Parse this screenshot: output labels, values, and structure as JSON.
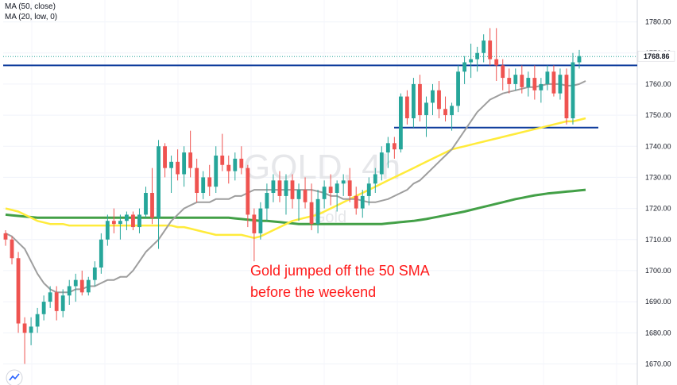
{
  "legend": {
    "line1": "MA (50, close)",
    "line2": "MA (20, low, 0)"
  },
  "watermark": {
    "symbol": "GOLD, 4h",
    "name": "Gold"
  },
  "annotation": {
    "line1": "Gold jumped off the 50 SMA",
    "line2": "before the weekend"
  },
  "price_tag": "1768.86",
  "colors": {
    "up": "#26a69a",
    "down": "#ef5350",
    "ma50": "#ffeb3b",
    "ma20": "#9e9e9e",
    "ma100": "#43a047",
    "level_line": "#0d3b9c",
    "annotation": "#ff1a1a"
  },
  "chart_data": {
    "type": "candlestick",
    "ylim": [
      1665,
      1785
    ],
    "yticks": [
      "1670.00",
      "1680.00",
      "1690.00",
      "1700.00",
      "1710.00",
      "1720.00",
      "1730.00",
      "1740.00",
      "1750.00",
      "1760.00",
      "1770.00",
      "1780.00"
    ],
    "candles": [
      [
        1712,
        1713,
        1708,
        1710
      ],
      [
        1710,
        1711,
        1702,
        1704
      ],
      [
        1704,
        1706,
        1680,
        1683
      ],
      [
        1683,
        1685,
        1670,
        1680
      ],
      [
        1680,
        1685,
        1676,
        1682
      ],
      [
        1682,
        1688,
        1680,
        1686
      ],
      [
        1686,
        1692,
        1684,
        1690
      ],
      [
        1690,
        1695,
        1688,
        1693
      ],
      [
        1693,
        1695,
        1684,
        1687
      ],
      [
        1687,
        1694,
        1685,
        1692
      ],
      [
        1692,
        1697,
        1689,
        1695
      ],
      [
        1695,
        1699,
        1690,
        1697
      ],
      [
        1697,
        1700,
        1692,
        1693
      ],
      [
        1693,
        1698,
        1692,
        1697
      ],
      [
        1697,
        1703,
        1695,
        1701
      ],
      [
        1701,
        1712,
        1699,
        1710
      ],
      [
        1710,
        1718,
        1708,
        1716
      ],
      [
        1716,
        1720,
        1712,
        1715
      ],
      [
        1715,
        1718,
        1710,
        1716
      ],
      [
        1716,
        1719,
        1713,
        1718
      ],
      [
        1718,
        1719,
        1713,
        1714
      ],
      [
        1714,
        1720,
        1712,
        1718
      ],
      [
        1718,
        1727,
        1717,
        1725
      ],
      [
        1725,
        1733,
        1715,
        1717
      ],
      [
        1717,
        1742,
        1707,
        1740
      ],
      [
        1740,
        1741,
        1730,
        1733
      ],
      [
        1733,
        1737,
        1725,
        1735
      ],
      [
        1735,
        1739,
        1729,
        1731
      ],
      [
        1731,
        1740,
        1727,
        1738
      ],
      [
        1738,
        1745,
        1730,
        1733
      ],
      [
        1733,
        1736,
        1722,
        1725
      ],
      [
        1725,
        1732,
        1723,
        1730
      ],
      [
        1730,
        1734,
        1724,
        1727
      ],
      [
        1727,
        1740,
        1725,
        1737
      ],
      [
        1737,
        1744,
        1732,
        1734
      ],
      [
        1734,
        1737,
        1728,
        1732
      ],
      [
        1732,
        1738,
        1729,
        1736
      ],
      [
        1736,
        1740,
        1731,
        1733
      ],
      [
        1733,
        1734,
        1714,
        1718
      ],
      [
        1718,
        1720,
        1703,
        1712
      ],
      [
        1712,
        1722,
        1710,
        1720
      ],
      [
        1720,
        1728,
        1716,
        1725
      ],
      [
        1725,
        1731,
        1722,
        1729
      ],
      [
        1729,
        1732,
        1722,
        1724
      ],
      [
        1724,
        1731,
        1718,
        1729
      ],
      [
        1729,
        1731,
        1720,
        1723
      ],
      [
        1723,
        1728,
        1716,
        1726
      ],
      [
        1726,
        1730,
        1720,
        1722
      ],
      [
        1722,
        1728,
        1713,
        1715
      ],
      [
        1715,
        1726,
        1712,
        1723
      ],
      [
        1723,
        1729,
        1720,
        1727
      ],
      [
        1727,
        1731,
        1721,
        1725
      ],
      [
        1725,
        1729,
        1719,
        1728
      ],
      [
        1728,
        1731,
        1724,
        1729
      ],
      [
        1729,
        1733,
        1722,
        1724
      ],
      [
        1724,
        1727,
        1718,
        1720
      ],
      [
        1720,
        1726,
        1717,
        1724
      ],
      [
        1724,
        1730,
        1721,
        1728
      ],
      [
        1728,
        1733,
        1725,
        1731
      ],
      [
        1731,
        1740,
        1729,
        1738
      ],
      [
        1738,
        1743,
        1733,
        1741
      ],
      [
        1741,
        1743,
        1736,
        1739
      ],
      [
        1739,
        1757,
        1738,
        1756
      ],
      [
        1756,
        1758,
        1747,
        1749
      ],
      [
        1749,
        1762,
        1746,
        1760
      ],
      [
        1760,
        1763,
        1748,
        1750
      ],
      [
        1750,
        1756,
        1743,
        1754
      ],
      [
        1754,
        1760,
        1750,
        1758
      ],
      [
        1758,
        1761,
        1749,
        1752
      ],
      [
        1752,
        1756,
        1748,
        1750
      ],
      [
        1750,
        1754,
        1745,
        1753
      ],
      [
        1753,
        1766,
        1751,
        1764
      ],
      [
        1764,
        1769,
        1760,
        1767
      ],
      [
        1767,
        1773,
        1762,
        1768
      ],
      [
        1768,
        1772,
        1764,
        1770
      ],
      [
        1770,
        1776,
        1767,
        1774
      ],
      [
        1774,
        1778,
        1766,
        1768
      ],
      [
        1768,
        1778,
        1761,
        1766
      ],
      [
        1766,
        1768,
        1758,
        1762
      ],
      [
        1762,
        1765,
        1757,
        1760
      ],
      [
        1760,
        1765,
        1758,
        1763
      ],
      [
        1763,
        1766,
        1757,
        1759
      ],
      [
        1759,
        1764,
        1756,
        1762
      ],
      [
        1762,
        1766,
        1755,
        1758
      ],
      [
        1758,
        1762,
        1754,
        1760
      ],
      [
        1760,
        1766,
        1758,
        1764
      ],
      [
        1764,
        1766,
        1756,
        1757
      ],
      [
        1757,
        1765,
        1755,
        1763
      ],
      [
        1763,
        1765,
        1747,
        1749
      ],
      [
        1749,
        1770,
        1747,
        1767
      ],
      [
        1767,
        1771,
        1765,
        1769
      ]
    ],
    "ma50": [
      1720,
      1719.5,
      1719,
      1718,
      1717,
      1716,
      1715.5,
      1715,
      1715,
      1715,
      1714.5,
      1714.5,
      1714.5,
      1714.5,
      1714.5,
      1714.5,
      1714.5,
      1714.5,
      1714.5,
      1714.5,
      1714.5,
      1714.5,
      1714.5,
      1714.5,
      1714.5,
      1714.5,
      1714.5,
      1714,
      1714,
      1713.5,
      1713,
      1712.5,
      1712,
      1711.5,
      1711.5,
      1711.5,
      1711.5,
      1711.5,
      1711,
      1710.5,
      1711,
      1712,
      1713,
      1714,
      1715,
      1716,
      1716.5,
      1717,
      1717.5,
      1718,
      1719,
      1720,
      1721,
      1722,
      1723,
      1724,
      1725,
      1726,
      1727,
      1728,
      1729,
      1730,
      1731,
      1732,
      1733,
      1734,
      1735,
      1736,
      1737,
      1738,
      1739,
      1739.5,
      1740,
      1740.5,
      1741,
      1741.5,
      1742,
      1742.5,
      1743,
      1743.5,
      1744,
      1744.5,
      1745,
      1745.5,
      1746,
      1746.5,
      1747,
      1747.5,
      1748,
      1748,
      1748.5,
      1749
    ],
    "ma20": [
      1712,
      1711,
      1709,
      1707,
      1703,
      1699,
      1696,
      1694,
      1693,
      1693,
      1693,
      1694,
      1694,
      1695,
      1695,
      1696,
      1697,
      1697,
      1698,
      1698,
      1700,
      1703,
      1706,
      1708,
      1710,
      1713,
      1716,
      1718,
      1720,
      1721,
      1722,
      1722,
      1722,
      1723,
      1723,
      1723,
      1724,
      1724,
      1725,
      1726,
      1726,
      1726,
      1726,
      1726,
      1726,
      1726,
      1726,
      1726,
      1726,
      1725.5,
      1725,
      1724,
      1724,
      1723,
      1723,
      1723,
      1722.5,
      1722,
      1722,
      1722.5,
      1723,
      1724,
      1725,
      1726,
      1728,
      1729,
      1731,
      1733,
      1735,
      1737,
      1739,
      1742,
      1745,
      1748,
      1751,
      1753,
      1755,
      1756,
      1757,
      1757.5,
      1758,
      1758.5,
      1759,
      1759,
      1759.5,
      1760,
      1760,
      1760,
      1759.5,
      1759.5,
      1760,
      1761
    ],
    "ma100": [
      1718,
      1717.8,
      1717.6,
      1717.4,
      1717.2,
      1717,
      1717,
      1717,
      1717,
      1717,
      1717,
      1717,
      1717,
      1717,
      1717,
      1717,
      1717,
      1717,
      1717,
      1717,
      1717,
      1717,
      1717,
      1717,
      1717,
      1717,
      1717,
      1717,
      1717,
      1717,
      1717,
      1717,
      1717,
      1717,
      1717,
      1717,
      1716.8,
      1716.6,
      1716.4,
      1716.2,
      1716,
      1716,
      1715.8,
      1715.6,
      1715.4,
      1715.2,
      1715,
      1715,
      1715,
      1715,
      1715,
      1715,
      1715,
      1715,
      1715,
      1715,
      1715,
      1715,
      1715,
      1715,
      1715.2,
      1715.4,
      1715.6,
      1715.8,
      1716,
      1716.3,
      1716.6,
      1717,
      1717.4,
      1717.8,
      1718.2,
      1718.6,
      1719,
      1719.5,
      1720,
      1720.5,
      1721,
      1721.5,
      1722,
      1722.5,
      1723,
      1723.4,
      1723.8,
      1724.2,
      1724.5,
      1724.8,
      1725,
      1725.2,
      1725.4,
      1725.6,
      1725.8,
      1726
    ],
    "levels": {
      "resistance": 1766,
      "support": 1746
    }
  }
}
